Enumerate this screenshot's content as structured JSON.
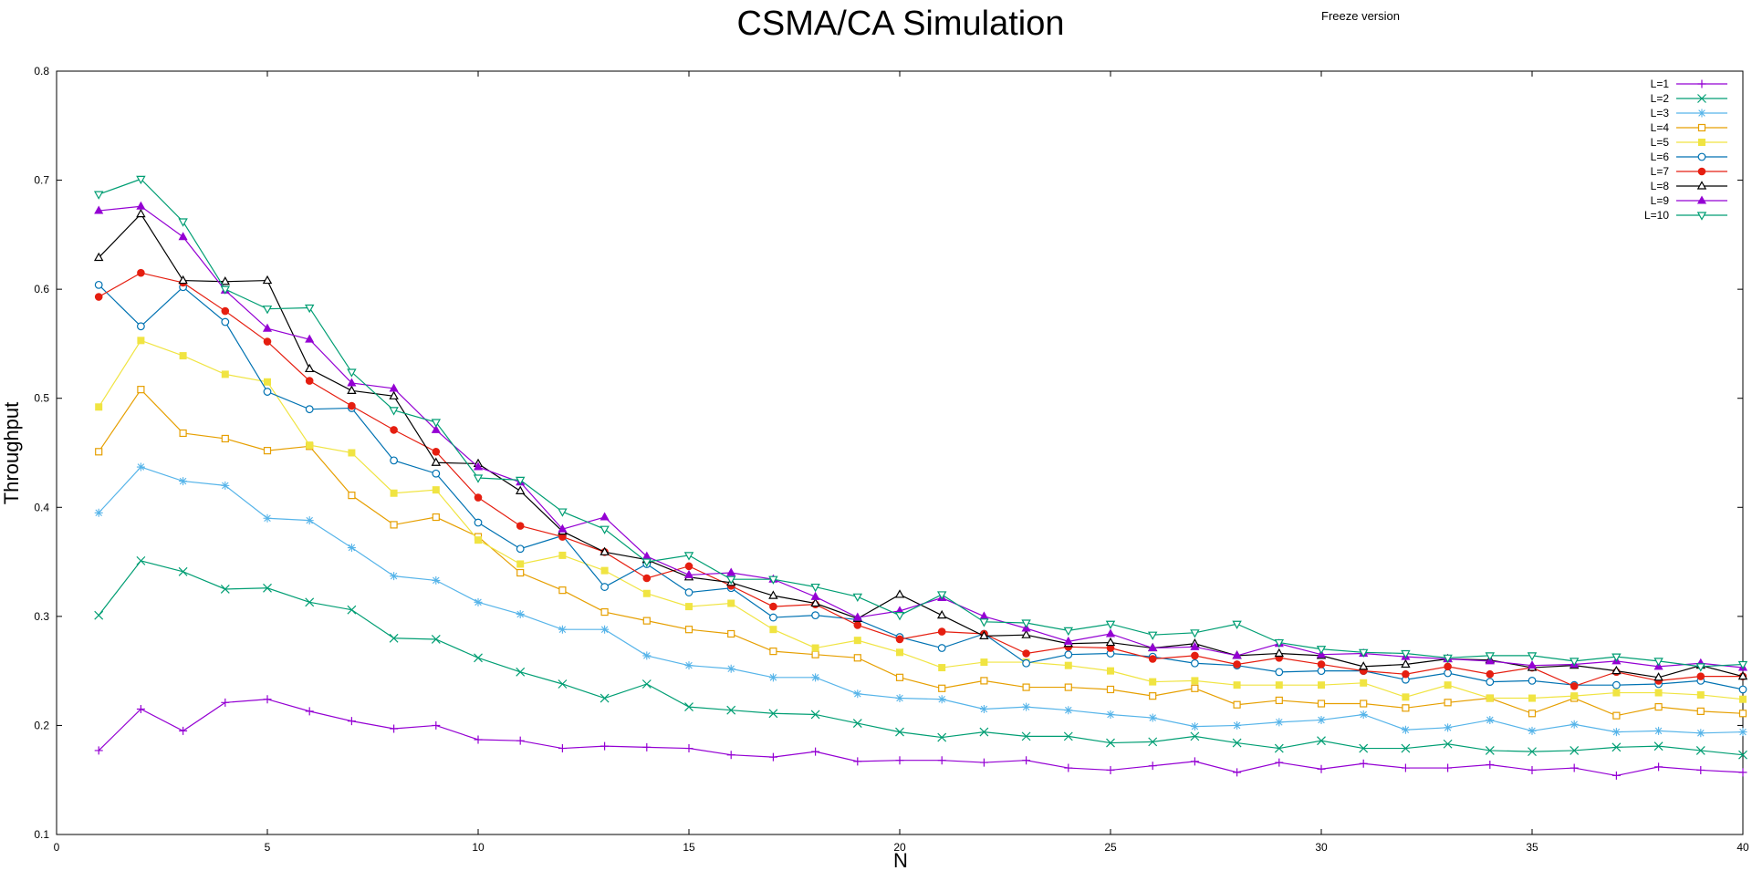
{
  "chart_data": {
    "type": "line",
    "title": "CSMA/CA Simulation",
    "subtitle": "Freeze version",
    "xlabel": "N",
    "ylabel": "Throughput",
    "xlim": [
      0,
      40
    ],
    "ylim": [
      0.1,
      0.8
    ],
    "xticks": [
      0,
      5,
      10,
      15,
      20,
      25,
      30,
      35,
      40
    ],
    "yticks": [
      0.1,
      0.2,
      0.3,
      0.4,
      0.5,
      0.6,
      0.7,
      0.8
    ],
    "ytick_labels": [
      "0.1",
      "0.2",
      "0.3",
      "0.4",
      "0.5",
      "0.6",
      "0.7",
      "0.8"
    ],
    "grid": false,
    "legend_position": "top-right",
    "x": [
      1,
      2,
      3,
      4,
      5,
      6,
      7,
      8,
      9,
      10,
      11,
      12,
      13,
      14,
      15,
      16,
      17,
      18,
      19,
      20,
      21,
      22,
      23,
      24,
      25,
      26,
      27,
      28,
      29,
      30,
      31,
      32,
      33,
      34,
      35,
      36,
      37,
      38,
      39,
      40
    ],
    "series": [
      {
        "name": "L=1",
        "color": "#9400d3",
        "marker": "plus",
        "values": [
          0.177,
          0.215,
          0.195,
          0.221,
          0.224,
          0.213,
          0.204,
          0.197,
          0.2,
          0.187,
          0.186,
          0.179,
          0.181,
          0.18,
          0.179,
          0.173,
          0.171,
          0.176,
          0.167,
          0.168,
          0.168,
          0.166,
          0.168,
          0.161,
          0.159,
          0.163,
          0.167,
          0.157,
          0.166,
          0.16,
          0.165,
          0.161,
          0.161,
          0.164,
          0.159,
          0.161,
          0.154,
          0.162,
          0.159,
          0.157
        ]
      },
      {
        "name": "L=2",
        "color": "#009e73",
        "marker": "cross",
        "values": [
          0.301,
          0.351,
          0.341,
          0.325,
          0.326,
          0.313,
          0.306,
          0.28,
          0.279,
          0.262,
          0.249,
          0.238,
          0.225,
          0.238,
          0.217,
          0.214,
          0.211,
          0.21,
          0.202,
          0.194,
          0.189,
          0.194,
          0.19,
          0.19,
          0.184,
          0.185,
          0.19,
          0.184,
          0.179,
          0.186,
          0.179,
          0.179,
          0.183,
          0.177,
          0.176,
          0.177,
          0.18,
          0.181,
          0.177,
          0.173
        ]
      },
      {
        "name": "L=3",
        "color": "#56b4e9",
        "marker": "star",
        "values": [
          0.395,
          0.437,
          0.424,
          0.42,
          0.39,
          0.388,
          0.363,
          0.337,
          0.333,
          0.313,
          0.302,
          0.288,
          0.288,
          0.264,
          0.255,
          0.252,
          0.244,
          0.244,
          0.229,
          0.225,
          0.224,
          0.215,
          0.217,
          0.214,
          0.21,
          0.207,
          0.199,
          0.2,
          0.203,
          0.205,
          0.21,
          0.196,
          0.198,
          0.205,
          0.195,
          0.201,
          0.194,
          0.195,
          0.193,
          0.194
        ]
      },
      {
        "name": "L=4",
        "color": "#e69f00",
        "marker": "open-square",
        "values": [
          0.451,
          0.508,
          0.468,
          0.463,
          0.452,
          0.456,
          0.411,
          0.384,
          0.391,
          0.373,
          0.34,
          0.324,
          0.304,
          0.296,
          0.288,
          0.284,
          0.268,
          0.265,
          0.262,
          0.244,
          0.234,
          0.241,
          0.235,
          0.235,
          0.233,
          0.227,
          0.234,
          0.219,
          0.223,
          0.22,
          0.22,
          0.216,
          0.221,
          0.225,
          0.211,
          0.225,
          0.209,
          0.217,
          0.213,
          0.211
        ]
      },
      {
        "name": "L=5",
        "color": "#f0e442",
        "marker": "filled-square",
        "values": [
          0.492,
          0.553,
          0.539,
          0.522,
          0.515,
          0.457,
          0.45,
          0.413,
          0.416,
          0.37,
          0.348,
          0.356,
          0.342,
          0.321,
          0.309,
          0.312,
          0.288,
          0.271,
          0.278,
          0.267,
          0.253,
          0.258,
          0.258,
          0.255,
          0.25,
          0.24,
          0.241,
          0.237,
          0.237,
          0.237,
          0.239,
          0.226,
          0.237,
          0.225,
          0.225,
          0.227,
          0.23,
          0.23,
          0.228,
          0.224
        ]
      },
      {
        "name": "L=6",
        "color": "#0072b2",
        "marker": "open-circle",
        "values": [
          0.604,
          0.566,
          0.602,
          0.57,
          0.506,
          0.49,
          0.491,
          0.443,
          0.431,
          0.386,
          0.362,
          0.374,
          0.327,
          0.348,
          0.322,
          0.326,
          0.299,
          0.301,
          0.297,
          0.281,
          0.271,
          0.284,
          0.257,
          0.265,
          0.266,
          0.263,
          0.257,
          0.255,
          0.249,
          0.25,
          0.25,
          0.242,
          0.248,
          0.24,
          0.241,
          0.237,
          0.237,
          0.238,
          0.241,
          0.233
        ]
      },
      {
        "name": "L=7",
        "color": "#e51e10",
        "marker": "filled-circle",
        "values": [
          0.593,
          0.615,
          0.606,
          0.58,
          0.552,
          0.516,
          0.493,
          0.471,
          0.451,
          0.409,
          0.383,
          0.373,
          0.359,
          0.335,
          0.346,
          0.328,
          0.309,
          0.311,
          0.292,
          0.279,
          0.286,
          0.284,
          0.266,
          0.272,
          0.271,
          0.261,
          0.264,
          0.256,
          0.262,
          0.256,
          0.25,
          0.247,
          0.254,
          0.247,
          0.253,
          0.236,
          0.249,
          0.241,
          0.245,
          0.245
        ]
      },
      {
        "name": "L=8",
        "color": "#000000",
        "marker": "open-triangle",
        "values": [
          0.629,
          0.669,
          0.608,
          0.607,
          0.608,
          0.527,
          0.507,
          0.502,
          0.441,
          0.44,
          0.415,
          0.378,
          0.359,
          0.352,
          0.336,
          0.331,
          0.319,
          0.312,
          0.298,
          0.32,
          0.301,
          0.282,
          0.283,
          0.275,
          0.276,
          0.271,
          0.275,
          0.264,
          0.266,
          0.264,
          0.254,
          0.256,
          0.261,
          0.26,
          0.253,
          0.255,
          0.25,
          0.244,
          0.255,
          0.245
        ]
      },
      {
        "name": "L=9",
        "color": "#9400d3",
        "marker": "filled-triangle",
        "values": [
          0.672,
          0.676,
          0.648,
          0.599,
          0.564,
          0.554,
          0.514,
          0.509,
          0.471,
          0.437,
          0.423,
          0.38,
          0.391,
          0.355,
          0.338,
          0.34,
          0.334,
          0.318,
          0.299,
          0.305,
          0.317,
          0.3,
          0.289,
          0.277,
          0.284,
          0.271,
          0.272,
          0.264,
          0.275,
          0.265,
          0.266,
          0.263,
          0.261,
          0.259,
          0.255,
          0.256,
          0.259,
          0.254,
          0.257,
          0.253
        ]
      },
      {
        "name": "L=10",
        "color": "#009e73",
        "marker": "open-inverted-triangle",
        "values": [
          0.687,
          0.701,
          0.662,
          0.6,
          0.582,
          0.583,
          0.524,
          0.489,
          0.478,
          0.427,
          0.425,
          0.396,
          0.38,
          0.35,
          0.356,
          0.334,
          0.334,
          0.327,
          0.318,
          0.301,
          0.32,
          0.295,
          0.294,
          0.287,
          0.293,
          0.283,
          0.285,
          0.293,
          0.276,
          0.27,
          0.267,
          0.266,
          0.262,
          0.264,
          0.264,
          0.259,
          0.263,
          0.259,
          0.254,
          0.256
        ]
      }
    ]
  }
}
